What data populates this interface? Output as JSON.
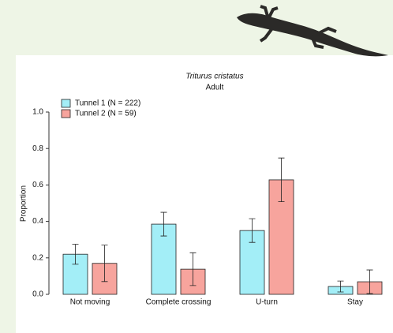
{
  "chart_data": {
    "type": "bar",
    "title": "Triturus cristatus",
    "subtitle": "Adult",
    "y_label": "Proportion",
    "categories": [
      "Not moving",
      "Complete crossing",
      "U-turn",
      "Stay"
    ],
    "series": [
      {
        "name": "Tunnel 1 (N = 222)",
        "color": "#a3eef7",
        "values": [
          0.22,
          0.385,
          0.35,
          0.043
        ],
        "errors": [
          0.055,
          0.065,
          0.065,
          0.03
        ]
      },
      {
        "name": "Tunnel 2 (N = 59)",
        "color": "#f7a49d",
        "values": [
          0.17,
          0.138,
          0.628,
          0.069
        ],
        "errors": [
          0.1,
          0.09,
          0.12,
          0.065
        ]
      }
    ],
    "ylim": [
      0,
      1
    ],
    "yticks": [
      {
        "value": 0,
        "label": "0.0"
      },
      0.2,
      0.4,
      0.6,
      0.8,
      {
        "value": 1,
        "label": "1.0"
      }
    ],
    "grid": false,
    "legend": "top-left",
    "error_bars": true
  }
}
